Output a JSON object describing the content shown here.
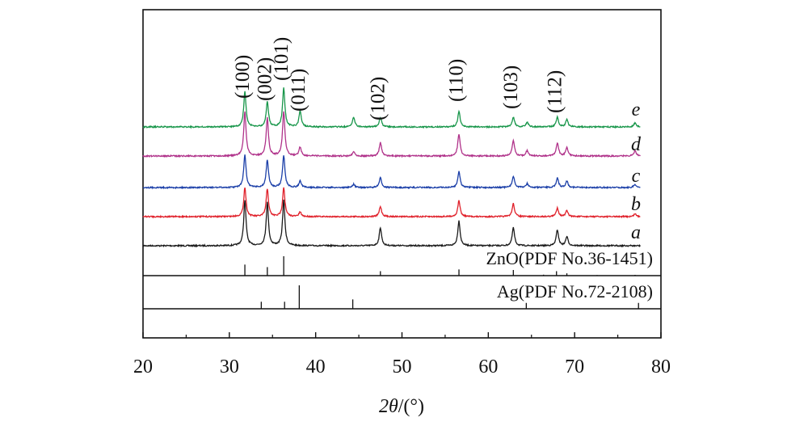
{
  "chart_data": {
    "type": "line",
    "title": "",
    "xlabel_symbol": "2θ",
    "xlabel_unit": "/(°)",
    "ylabel": "",
    "xlim": [
      20,
      80
    ],
    "x_ticks": [
      20,
      30,
      40,
      50,
      60,
      70,
      80
    ],
    "grid": false,
    "peak_labels": [
      {
        "label": "(100)",
        "x": 31.8
      },
      {
        "label": "(002)",
        "x": 34.4
      },
      {
        "label": "(101)",
        "x": 36.3
      },
      {
        "label": "(011)",
        "x": 38.2
      },
      {
        "label": "(102)",
        "x": 47.5
      },
      {
        "label": "(110)",
        "x": 56.6
      },
      {
        "label": "(103)",
        "x": 62.9
      },
      {
        "label": "(112)",
        "x": 68.0
      }
    ],
    "series": [
      {
        "name": "a",
        "color": "#1a1a1a",
        "peaks": [
          [
            31.8,
            1.0
          ],
          [
            34.4,
            0.95
          ],
          [
            36.3,
            1.0
          ],
          [
            47.5,
            0.4
          ],
          [
            56.6,
            0.55
          ],
          [
            62.9,
            0.4
          ],
          [
            68.0,
            0.35
          ],
          [
            69.1,
            0.2
          ]
        ]
      },
      {
        "name": "b",
        "color": "#e0202a",
        "peaks": [
          [
            31.8,
            1.0
          ],
          [
            34.4,
            0.95
          ],
          [
            36.3,
            1.0
          ],
          [
            38.2,
            0.15
          ],
          [
            47.5,
            0.35
          ],
          [
            56.6,
            0.55
          ],
          [
            62.9,
            0.45
          ],
          [
            68.0,
            0.3
          ],
          [
            69.1,
            0.2
          ],
          [
            77.0,
            0.1
          ]
        ]
      },
      {
        "name": "c",
        "color": "#1b3fa8",
        "peaks": [
          [
            31.8,
            1.0
          ],
          [
            34.4,
            0.85
          ],
          [
            36.3,
            1.0
          ],
          [
            38.2,
            0.2
          ],
          [
            44.4,
            0.1
          ],
          [
            47.5,
            0.3
          ],
          [
            56.6,
            0.5
          ],
          [
            62.9,
            0.35
          ],
          [
            64.5,
            0.12
          ],
          [
            68.0,
            0.3
          ],
          [
            69.1,
            0.2
          ],
          [
            77.0,
            0.1
          ]
        ]
      },
      {
        "name": "d",
        "color": "#b0328a",
        "peaks": [
          [
            31.8,
            1.0
          ],
          [
            34.4,
            0.85
          ],
          [
            36.3,
            1.0
          ],
          [
            38.2,
            0.2
          ],
          [
            44.4,
            0.1
          ],
          [
            47.5,
            0.3
          ],
          [
            56.6,
            0.5
          ],
          [
            62.9,
            0.35
          ],
          [
            64.5,
            0.12
          ],
          [
            68.0,
            0.3
          ],
          [
            69.1,
            0.2
          ],
          [
            77.0,
            0.12
          ]
        ]
      },
      {
        "name": "e",
        "color": "#18964a",
        "peaks": [
          [
            31.8,
            0.9
          ],
          [
            34.4,
            0.65
          ],
          [
            36.3,
            1.0
          ],
          [
            38.2,
            0.4
          ],
          [
            44.4,
            0.25
          ],
          [
            47.5,
            0.25
          ],
          [
            56.6,
            0.4
          ],
          [
            62.9,
            0.25
          ],
          [
            64.5,
            0.12
          ],
          [
            68.0,
            0.25
          ],
          [
            69.1,
            0.18
          ],
          [
            77.0,
            0.1
          ]
        ]
      }
    ],
    "reference_patterns": [
      {
        "label": "ZnO(PDF No.36-1451)",
        "lines": [
          [
            31.8,
            0.57
          ],
          [
            34.4,
            0.44
          ],
          [
            36.3,
            1.0
          ],
          [
            47.5,
            0.23
          ],
          [
            56.6,
            0.32
          ],
          [
            62.9,
            0.29
          ],
          [
            66.4,
            0.05
          ],
          [
            67.9,
            0.23
          ],
          [
            69.1,
            0.12
          ],
          [
            72.6,
            0.03
          ],
          [
            77.0,
            0.04
          ]
        ]
      },
      {
        "label": "Ag(PDF No.72-2108)",
        "lines": [
          [
            33.7,
            0.3
          ],
          [
            36.4,
            0.3
          ],
          [
            38.1,
            1.0
          ],
          [
            44.3,
            0.4
          ],
          [
            64.4,
            0.25
          ],
          [
            77.4,
            0.25
          ]
        ]
      }
    ]
  }
}
